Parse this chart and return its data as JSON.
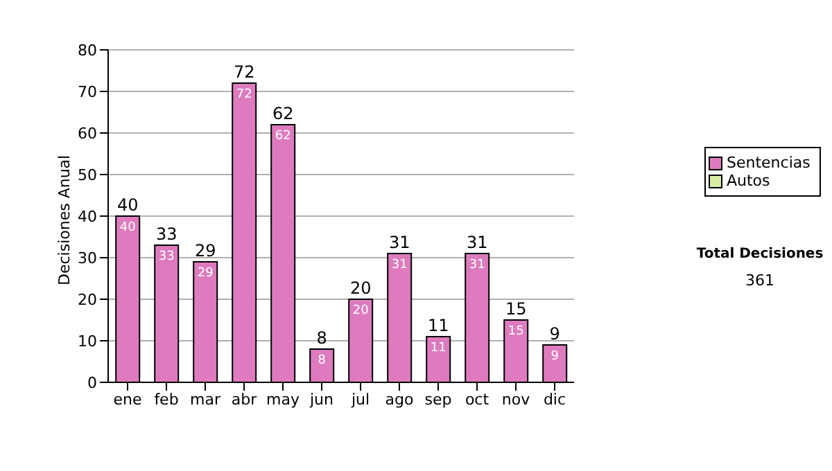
{
  "chart_data": {
    "type": "bar",
    "stacked": true,
    "ylabel": "Decisiones Anual",
    "categories": [
      "ene",
      "feb",
      "mar",
      "abr",
      "may",
      "jun",
      "jul",
      "ago",
      "sep",
      "oct",
      "nov",
      "dic"
    ],
    "series": [
      {
        "name": "Sentencias",
        "color": "#dd7bbe",
        "values": [
          40,
          33,
          29,
          72,
          62,
          8,
          20,
          31,
          11,
          31,
          15,
          9
        ]
      },
      {
        "name": "Autos",
        "color": "#d9eca4",
        "values": [
          null,
          null,
          null,
          null,
          null,
          null,
          null,
          null,
          null,
          null,
          null,
          null
        ]
      }
    ],
    "totals": [
      "40",
      "33",
      "29",
      "72",
      "62",
      "8",
      "20",
      "31",
      "11",
      "31",
      "15",
      "9"
    ],
    "data_labels": true,
    "ylim": [
      0,
      80
    ],
    "yticks": [
      0,
      10,
      20,
      30,
      40,
      50,
      60,
      70,
      80
    ],
    "grid": "y",
    "legend": "right",
    "annotations": [
      "Total Decisiones",
      "361"
    ]
  }
}
